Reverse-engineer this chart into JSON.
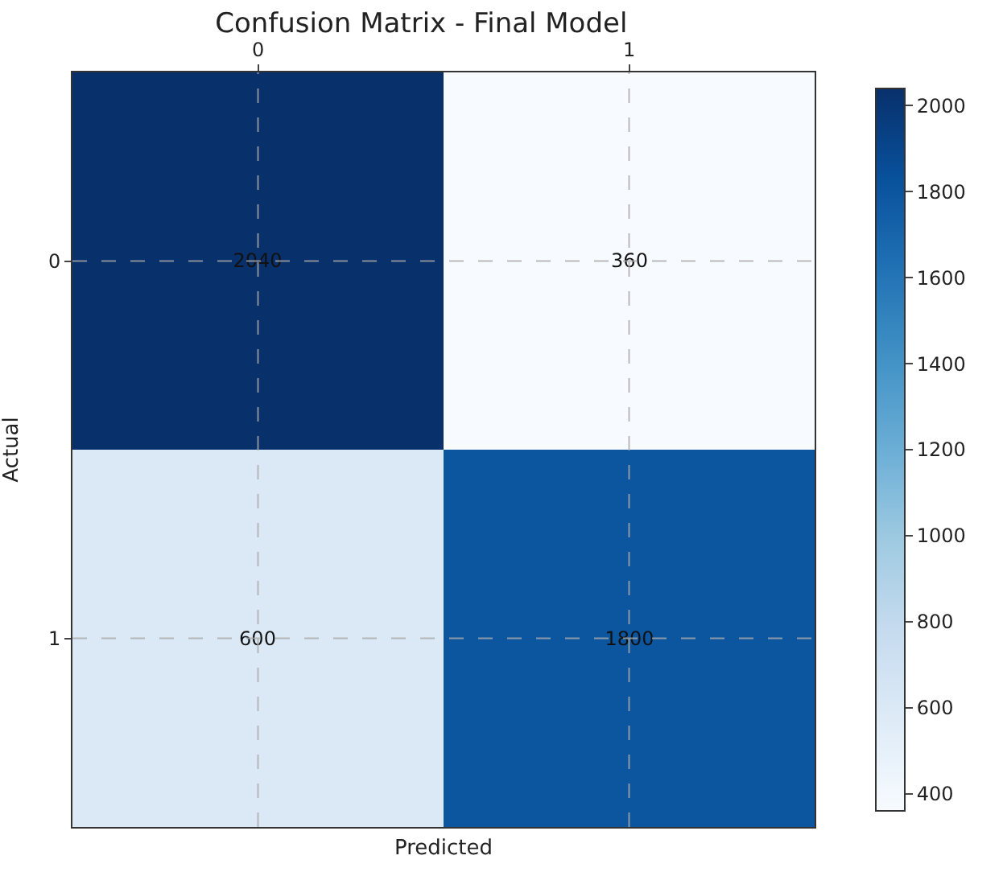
{
  "chart_data": {
    "type": "heatmap",
    "title": "Confusion Matrix - Final Model",
    "xlabel": "Predicted",
    "ylabel": "Actual",
    "categories": [
      "0",
      "1"
    ],
    "y_categories": [
      "0",
      "1"
    ],
    "cells": [
      [
        2040,
        360
      ],
      [
        600,
        1800
      ]
    ],
    "clim": [
      360,
      2040
    ],
    "cticks": [
      400,
      600,
      800,
      1000,
      1200,
      1400,
      1600,
      1800,
      2000
    ],
    "data_labels": true,
    "grid": true
  }
}
